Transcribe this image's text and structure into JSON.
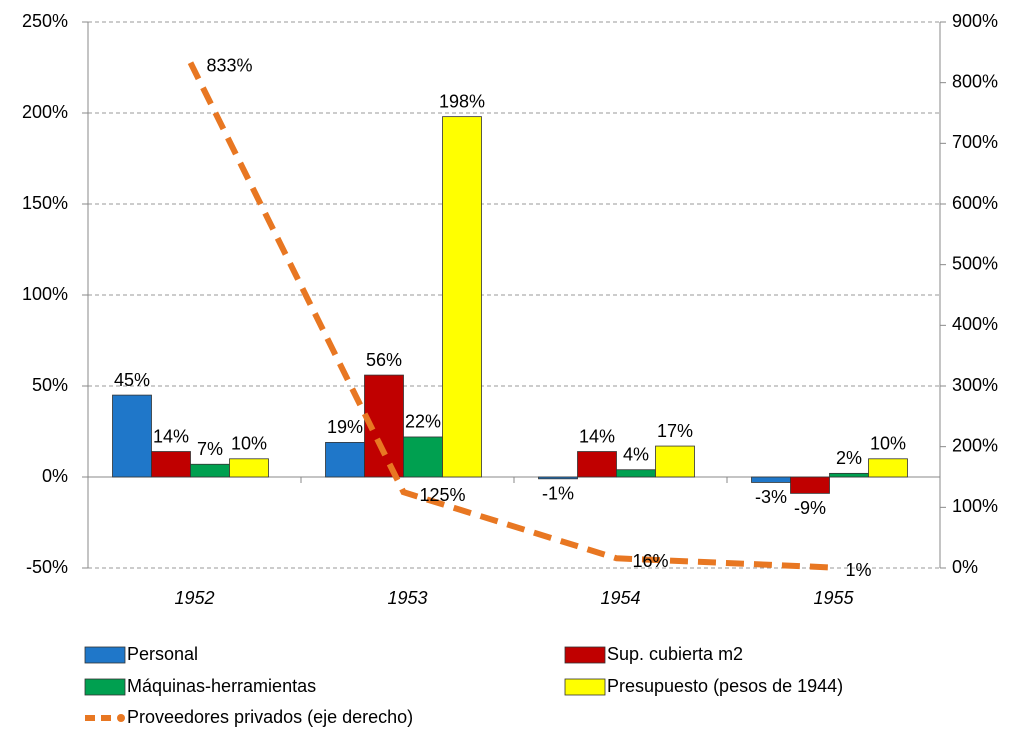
{
  "chart_data": {
    "type": "bar",
    "categories": [
      "1952",
      "1953",
      "1954",
      "1955"
    ],
    "series": [
      {
        "name": "Personal",
        "color": "#1f77c9",
        "values": [
          45,
          19,
          -1,
          -3
        ],
        "value_labels": [
          "45%",
          "19%",
          "-1%",
          "-3%"
        ]
      },
      {
        "name": "Sup. cubierta m2",
        "color": "#c00000",
        "values": [
          14,
          56,
          14,
          -9
        ],
        "value_labels": [
          "14%",
          "56%",
          "14%",
          "-9%"
        ]
      },
      {
        "name": "Máquinas-herramientas",
        "color": "#00a050",
        "values": [
          7,
          22,
          4,
          2
        ],
        "value_labels": [
          "7%",
          "22%",
          "4%",
          "2%"
        ]
      },
      {
        "name": "Presupuesto (pesos de 1944)",
        "color": "#ffff00",
        "values": [
          10,
          198,
          17,
          10
        ],
        "value_labels": [
          "10%",
          "198%",
          "17%",
          "10%"
        ]
      },
      {
        "name": "Proveedores privados (eje derecho)",
        "color": "#e87722",
        "type": "line",
        "axis": "y2",
        "values": [
          833,
          125,
          16,
          1
        ],
        "value_labels": [
          "833%",
          "125%",
          "16%",
          "1%"
        ]
      }
    ],
    "ylim": [
      -50,
      250
    ],
    "yticks": [
      {
        "value": -50,
        "label": "-50%"
      },
      {
        "value": 0,
        "label": "0%"
      },
      {
        "value": 50,
        "label": "50%"
      },
      {
        "value": 100,
        "label": "100%"
      },
      {
        "value": 150,
        "label": "150%"
      },
      {
        "value": 200,
        "label": "200%"
      },
      {
        "value": 250,
        "label": "250%"
      }
    ],
    "y2lim": [
      0,
      900
    ],
    "y2ticks": [
      {
        "value": 0,
        "label": "0%"
      },
      {
        "value": 100,
        "label": "100%"
      },
      {
        "value": 200,
        "label": "200%"
      },
      {
        "value": 300,
        "label": "300%"
      },
      {
        "value": 400,
        "label": "400%"
      },
      {
        "value": 500,
        "label": "500%"
      },
      {
        "value": 600,
        "label": "600%"
      },
      {
        "value": 700,
        "label": "700%"
      },
      {
        "value": 800,
        "label": "800%"
      },
      {
        "value": 900,
        "label": "900%"
      }
    ],
    "grid": true
  }
}
